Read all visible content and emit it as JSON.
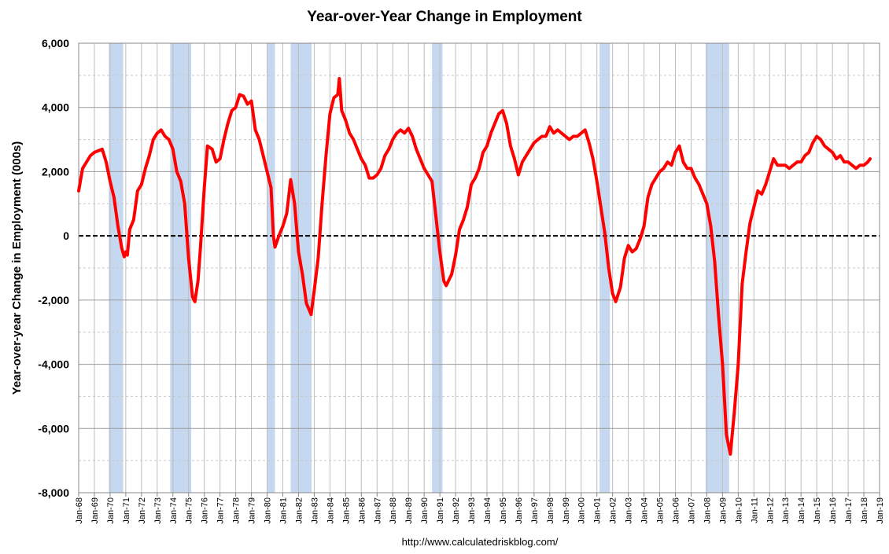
{
  "chart_data": {
    "type": "line",
    "title": "Year-over-Year Change in Employment",
    "y_label": "Year-over-year Change in Employment (000s)",
    "source": "http://www.calculatedriskblog.com/",
    "color": "#ff0000",
    "recession_color": "#c5d8f0",
    "grid": true,
    "xlim": [
      1968,
      2019
    ],
    "ylim": [
      -8000,
      6000
    ],
    "yticks": [
      {
        "value": -8000,
        "label": "-8,000"
      },
      {
        "value": -6000,
        "label": "-6,000"
      },
      {
        "value": -4000,
        "label": "-4,000"
      },
      {
        "value": -2000,
        "label": "-2,000"
      },
      0,
      {
        "value": 2000,
        "label": "2,000"
      },
      {
        "value": 4000,
        "label": "4,000"
      },
      {
        "value": 6000,
        "label": "6,000"
      }
    ],
    "yminorticks": [
      -7000,
      -5000,
      -3000,
      -1000,
      1000,
      3000,
      5000
    ],
    "xticks": [
      {
        "value": 1968,
        "label": "Jan-68"
      },
      {
        "value": 1969,
        "label": "Jan-69"
      },
      {
        "value": 1970,
        "label": "Jan-70"
      },
      {
        "value": 1971,
        "label": "Jan-71"
      },
      {
        "value": 1972,
        "label": "Jan-72"
      },
      {
        "value": 1973,
        "label": "Jan-73"
      },
      {
        "value": 1974,
        "label": "Jan-74"
      },
      {
        "value": 1975,
        "label": "Jan-75"
      },
      {
        "value": 1976,
        "label": "Jan-76"
      },
      {
        "value": 1977,
        "label": "Jan-77"
      },
      {
        "value": 1978,
        "label": "Jan-78"
      },
      {
        "value": 1979,
        "label": "Jan-79"
      },
      {
        "value": 1980,
        "label": "Jan-80"
      },
      {
        "value": 1981,
        "label": "Jan-81"
      },
      {
        "value": 1982,
        "label": "Jan-82"
      },
      {
        "value": 1983,
        "label": "Jan-83"
      },
      {
        "value": 1984,
        "label": "Jan-84"
      },
      {
        "value": 1985,
        "label": "Jan-85"
      },
      {
        "value": 1986,
        "label": "Jan-86"
      },
      {
        "value": 1987,
        "label": "Jan-87"
      },
      {
        "value": 1988,
        "label": "Jan-88"
      },
      {
        "value": 1989,
        "label": "Jan-89"
      },
      {
        "value": 1990,
        "label": "Jan-90"
      },
      {
        "value": 1991,
        "label": "Jan-91"
      },
      {
        "value": 1992,
        "label": "Jan-92"
      },
      {
        "value": 1993,
        "label": "Jan-93"
      },
      {
        "value": 1994,
        "label": "Jan-94"
      },
      {
        "value": 1995,
        "label": "Jan-95"
      },
      {
        "value": 1996,
        "label": "Jan-96"
      },
      {
        "value": 1997,
        "label": "Jan-97"
      },
      {
        "value": 1998,
        "label": "Jan-98"
      },
      {
        "value": 1999,
        "label": "Jan-99"
      },
      {
        "value": 2000,
        "label": "Jan-00"
      },
      {
        "value": 2001,
        "label": "Jan-01"
      },
      {
        "value": 2002,
        "label": "Jan-02"
      },
      {
        "value": 2003,
        "label": "Jan-03"
      },
      {
        "value": 2004,
        "label": "Jan-04"
      },
      {
        "value": 2005,
        "label": "Jan-05"
      },
      {
        "value": 2006,
        "label": "Jan-06"
      },
      {
        "value": 2007,
        "label": "Jan-07"
      },
      {
        "value": 2008,
        "label": "Jan-08"
      },
      {
        "value": 2009,
        "label": "Jan-09"
      },
      {
        "value": 2010,
        "label": "Jan-10"
      },
      {
        "value": 2011,
        "label": "Jan-11"
      },
      {
        "value": 2012,
        "label": "Jan-12"
      },
      {
        "value": 2013,
        "label": "Jan-13"
      },
      {
        "value": 2014,
        "label": "Jan-14"
      },
      {
        "value": 2015,
        "label": "Jan-15"
      },
      {
        "value": 2016,
        "label": "Jan-16"
      },
      {
        "value": 2017,
        "label": "Jan-17"
      },
      {
        "value": 2018,
        "label": "Jan-18"
      },
      {
        "value": 2019,
        "label": "Jan-19"
      }
    ],
    "recessions": [
      [
        1969.92,
        1970.83
      ],
      [
        1973.83,
        1975.17
      ],
      [
        1980.0,
        1980.5
      ],
      [
        1981.5,
        1982.83
      ],
      [
        1990.5,
        1991.17
      ],
      [
        2001.17,
        2001.83
      ],
      [
        2007.92,
        2009.42
      ]
    ],
    "x": [
      1968.0,
      1968.25,
      1968.5,
      1968.75,
      1969.0,
      1969.25,
      1969.5,
      1969.75,
      1970.0,
      1970.25,
      1970.5,
      1970.75,
      1970.9,
      1971.0,
      1971.1,
      1971.25,
      1971.5,
      1971.75,
      1972.0,
      1972.25,
      1972.5,
      1972.75,
      1973.0,
      1973.25,
      1973.5,
      1973.75,
      1974.0,
      1974.25,
      1974.5,
      1974.75,
      1975.0,
      1975.25,
      1975.4,
      1975.6,
      1975.75,
      1976.0,
      1976.2,
      1976.5,
      1976.75,
      1977.0,
      1977.25,
      1977.5,
      1977.75,
      1978.0,
      1978.25,
      1978.5,
      1978.75,
      1979.0,
      1979.25,
      1979.5,
      1979.75,
      1980.0,
      1980.25,
      1980.4,
      1980.5,
      1980.75,
      1981.0,
      1981.25,
      1981.5,
      1981.75,
      1982.0,
      1982.25,
      1982.5,
      1982.8,
      1983.0,
      1983.25,
      1983.5,
      1983.75,
      1984.0,
      1984.25,
      1984.5,
      1984.6,
      1984.75,
      1985.0,
      1985.25,
      1985.5,
      1985.75,
      1986.0,
      1986.25,
      1986.5,
      1986.75,
      1987.0,
      1987.25,
      1987.5,
      1987.75,
      1988.0,
      1988.25,
      1988.5,
      1988.75,
      1989.0,
      1989.25,
      1989.5,
      1989.75,
      1990.0,
      1990.25,
      1990.5,
      1990.75,
      1991.0,
      1991.25,
      1991.4,
      1991.75,
      1992.0,
      1992.25,
      1992.5,
      1992.75,
      1993.0,
      1993.25,
      1993.5,
      1993.75,
      1994.0,
      1994.25,
      1994.5,
      1994.75,
      1995.0,
      1995.25,
      1995.5,
      1995.75,
      1996.0,
      1996.25,
      1996.5,
      1996.75,
      1997.0,
      1997.25,
      1997.5,
      1997.75,
      1998.0,
      1998.25,
      1998.5,
      1998.75,
      1999.0,
      1999.25,
      1999.5,
      1999.75,
      2000.0,
      2000.25,
      2000.5,
      2000.75,
      2001.0,
      2001.25,
      2001.5,
      2001.75,
      2002.0,
      2002.2,
      2002.5,
      2002.75,
      2003.0,
      2003.25,
      2003.5,
      2003.75,
      2004.0,
      2004.25,
      2004.5,
      2004.75,
      2005.0,
      2005.25,
      2005.5,
      2005.75,
      2006.0,
      2006.25,
      2006.5,
      2006.75,
      2007.0,
      2007.25,
      2007.5,
      2007.75,
      2008.0,
      2008.25,
      2008.5,
      2008.75,
      2009.0,
      2009.25,
      2009.5,
      2009.75,
      2010.0,
      2010.25,
      2010.5,
      2010.75,
      2011.0,
      2011.25,
      2011.5,
      2011.75,
      2012.0,
      2012.25,
      2012.5,
      2012.75,
      2013.0,
      2013.25,
      2013.5,
      2013.75,
      2014.0,
      2014.25,
      2014.5,
      2014.75,
      2015.0,
      2015.25,
      2015.5,
      2015.75,
      2016.0,
      2016.25,
      2016.5,
      2016.75,
      2017.0,
      2017.25,
      2017.5,
      2017.75,
      2018.0,
      2018.25,
      2018.4
    ],
    "values": [
      1400,
      2100,
      2300,
      2500,
      2600,
      2650,
      2700,
      2300,
      1700,
      1200,
      300,
      -400,
      -650,
      -500,
      -600,
      200,
      500,
      1400,
      1600,
      2100,
      2500,
      3000,
      3200,
      3300,
      3100,
      3000,
      2700,
      2000,
      1700,
      1000,
      -700,
      -1900,
      -2050,
      -1400,
      -400,
      1500,
      2800,
      2700,
      2300,
      2400,
      3000,
      3500,
      3900,
      4000,
      4400,
      4350,
      4100,
      4200,
      3300,
      3000,
      2500,
      2000,
      1500,
      0,
      -350,
      0,
      300,
      700,
      1750,
      1000,
      -500,
      -1200,
      -2100,
      -2450,
      -1700,
      -700,
      1000,
      2500,
      3800,
      4300,
      4400,
      4900,
      3900,
      3600,
      3200,
      3000,
      2700,
      2400,
      2200,
      1800,
      1800,
      1900,
      2100,
      2500,
      2700,
      3000,
      3200,
      3300,
      3200,
      3350,
      3100,
      2700,
      2400,
      2100,
      1900,
      1700,
      600,
      -500,
      -1400,
      -1550,
      -1200,
      -600,
      200,
      500,
      900,
      1600,
      1800,
      2100,
      2600,
      2800,
      3200,
      3500,
      3800,
      3900,
      3500,
      2800,
      2400,
      1900,
      2300,
      2500,
      2700,
      2900,
      3000,
      3100,
      3100,
      3400,
      3200,
      3300,
      3200,
      3100,
      3000,
      3100,
      3100,
      3200,
      3300,
      2900,
      2400,
      1700,
      900,
      100,
      -1000,
      -1800,
      -2050,
      -1600,
      -700,
      -300,
      -500,
      -400,
      -100,
      300,
      1200,
      1600,
      1800,
      2000,
      2100,
      2300,
      2200,
      2600,
      2800,
      2300,
      2100,
      2100,
      1800,
      1600,
      1300,
      1000,
      300,
      -800,
      -2500,
      -4000,
      -6200,
      -6800,
      -5500,
      -4000,
      -1500,
      -500,
      400,
      900,
      1400,
      1300,
      1600,
      2000,
      2400,
      2200,
      2200,
      2200,
      2100,
      2200,
      2300,
      2300,
      2500,
      2600,
      2900,
      3100,
      3000,
      2800,
      2700,
      2600,
      2400,
      2500,
      2300,
      2300,
      2200,
      2100,
      2200,
      2200,
      2300,
      2400
    ]
  }
}
